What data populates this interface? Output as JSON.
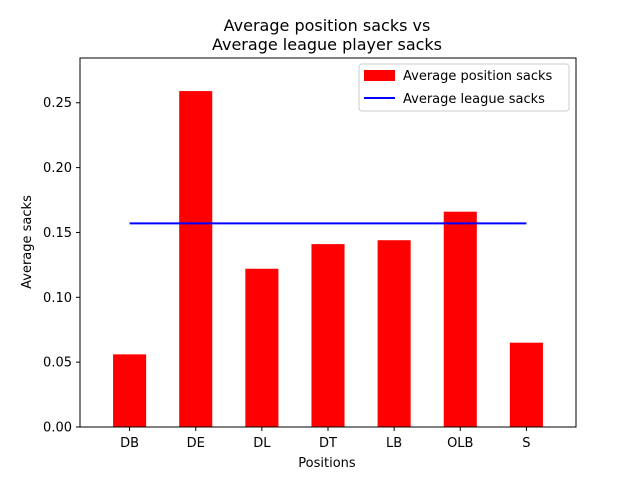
{
  "chart_data": {
    "type": "bar",
    "title_line1": "Average position sacks vs",
    "title_line2": "Average league player sacks",
    "xlabel": "Positions",
    "ylabel": "Average sacks",
    "categories": [
      "DB",
      "DE",
      "DL",
      "DT",
      "LB",
      "OLB",
      "S"
    ],
    "series": [
      {
        "name": "Average position sacks",
        "values": [
          0.056,
          0.259,
          0.122,
          0.141,
          0.144,
          0.166,
          0.065
        ],
        "color": "#ff0000"
      }
    ],
    "reference_line": {
      "name": "Average league sacks",
      "value": 0.157,
      "color": "#0000ff"
    },
    "ylim": [
      0,
      0.2845
    ],
    "yticks": [
      "0.00",
      "0.05",
      "0.10",
      "0.15",
      "0.20",
      "0.25"
    ],
    "grid": false,
    "legend_position": "top-right"
  }
}
